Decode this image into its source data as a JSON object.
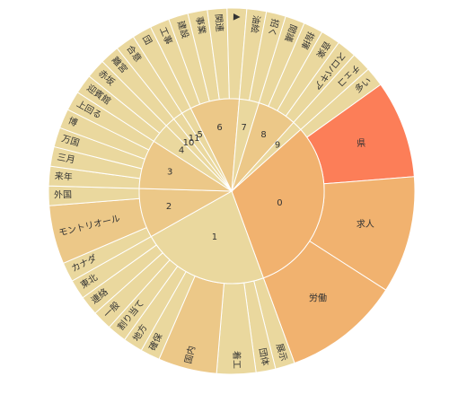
{
  "chart_data": {
    "type": "sunburst",
    "colors": {
      "hot": "#fc7e58",
      "warm": "#f1b26f",
      "mid": "#ecc888",
      "light": "#ead89e",
      "stroke": "#ffffff"
    },
    "groups": [
      {
        "label": "0",
        "children": [
          {
            "label": "多い",
            "value": 1
          },
          {
            "label": "県",
            "value": 5
          },
          {
            "label": "求人",
            "value": 6
          },
          {
            "label": "労働",
            "value": 6
          }
        ]
      },
      {
        "label": "1",
        "children": [
          {
            "label": "展示",
            "value": 1
          },
          {
            "label": "団体",
            "value": 1
          },
          {
            "label": "着工",
            "value": 2
          },
          {
            "label": "国内",
            "value": 3
          },
          {
            "label": "確保",
            "value": 1
          },
          {
            "label": "地方",
            "value": 1
          },
          {
            "label": "割り当て",
            "value": 1
          },
          {
            "label": "一般",
            "value": 1
          },
          {
            "label": "連絡",
            "value": 1
          },
          {
            "label": "東北",
            "value": 1
          }
        ]
      },
      {
        "label": "2",
        "children": [
          {
            "label": "カナダ",
            "value": 1
          },
          {
            "label": "モントリオール",
            "value": 3
          },
          {
            "label": "外国",
            "value": 1
          }
        ]
      },
      {
        "label": "3",
        "children": [
          {
            "label": "来年",
            "value": 1
          },
          {
            "label": "三月",
            "value": 1
          },
          {
            "label": "万国",
            "value": 1
          },
          {
            "label": "博",
            "value": 1
          },
          {
            "label": "上回る",
            "value": 1
          }
        ]
      },
      {
        "label": "4",
        "children": [
          {
            "label": "迎賓館",
            "value": 1
          },
          {
            "label": "赤坂",
            "value": 1
          }
        ]
      },
      {
        "label": "10",
        "children": [
          {
            "label": "離宮",
            "value": 1
          }
        ]
      },
      {
        "label": "11",
        "children": [
          {
            "label": "合意",
            "value": 1
          }
        ]
      },
      {
        "label": "5",
        "children": [
          {
            "label": "団",
            "value": 1
          }
        ]
      },
      {
        "label": "6",
        "children": [
          {
            "label": "工事",
            "value": 1
          },
          {
            "label": "建設",
            "value": 1
          },
          {
            "label": "事業",
            "value": 1
          },
          {
            "label": "関連",
            "value": 1
          },
          {
            "label": "▲",
            "value": 1
          }
        ]
      },
      {
        "label": "7",
        "children": [
          {
            "label": "油絵",
            "value": 1
          },
          {
            "label": "招く",
            "value": 1
          }
        ]
      },
      {
        "label": "8",
        "children": [
          {
            "label": "閲議",
            "value": 1
          },
          {
            "label": "指揮",
            "value": 1
          },
          {
            "label": "音楽",
            "value": 1
          },
          {
            "label": "スロバキア",
            "value": 1
          }
        ]
      },
      {
        "label": "9",
        "children": [
          {
            "label": "チェコ",
            "value": 1
          }
        ]
      }
    ]
  }
}
